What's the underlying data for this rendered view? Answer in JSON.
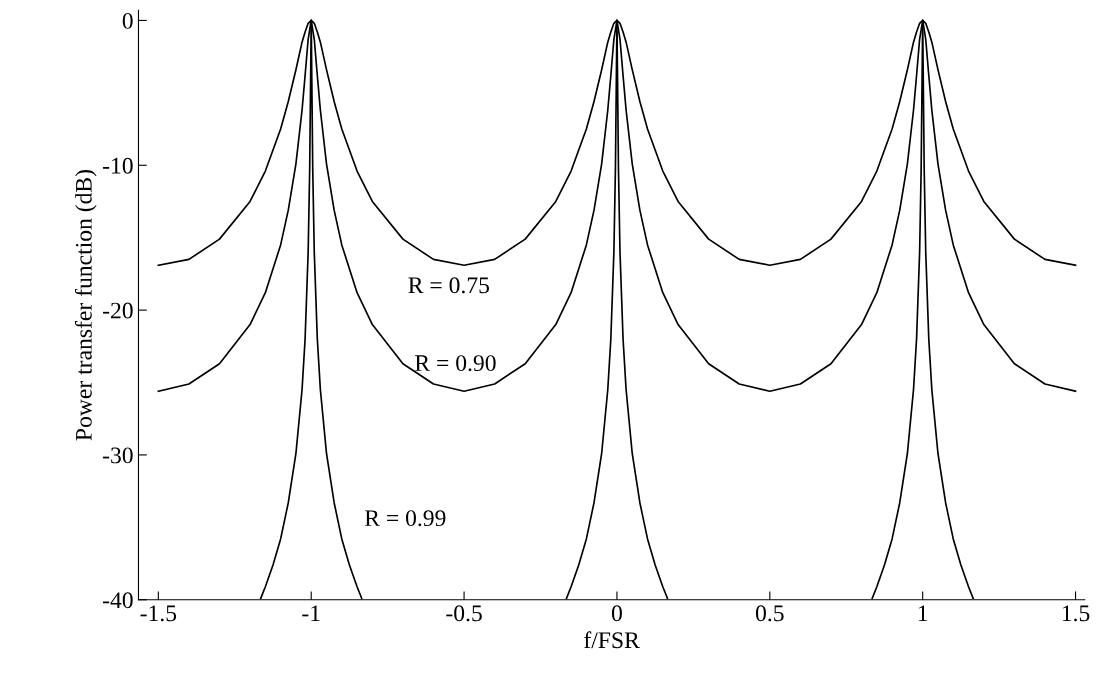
{
  "chart_data": {
    "type": "line",
    "xlabel": "f/FSR",
    "ylabel": "Power transfer function (dB)",
    "xlim": [
      -1.565,
      1.53
    ],
    "ylim": [
      -40,
      0.7
    ],
    "xticks": [
      -1.5,
      -1,
      -0.5,
      0,
      0.5,
      1,
      1.5
    ],
    "yticks": [
      -40,
      -30,
      -20,
      -10,
      0
    ],
    "grid": false,
    "marker": "none",
    "line_style": "solid",
    "x": [
      -1.5,
      -1.4,
      -1.3,
      -1.2,
      -1.15,
      -1.1,
      -1.075,
      -1.05,
      -1.03,
      -1.02,
      -1.01,
      -1,
      -0.99,
      -0.98,
      -0.97,
      -0.95,
      -0.925,
      -0.9,
      -0.85,
      -0.8,
      -0.7,
      -0.6,
      -0.5,
      -0.4,
      -0.3,
      -0.2,
      -0.15,
      -0.1,
      -0.075,
      -0.05,
      -0.03,
      -0.02,
      -0.01,
      0,
      0.01,
      0.02,
      0.03,
      0.05,
      0.075,
      0.1,
      0.15,
      0.2,
      0.3,
      0.4,
      0.5,
      0.6,
      0.7,
      0.8,
      0.85,
      0.9,
      0.925,
      0.95,
      0.97,
      0.98,
      0.99,
      1,
      1.01,
      1.02,
      1.03,
      1.05,
      1.075,
      1.1,
      1.15,
      1.2,
      1.3,
      1.4,
      1.5
    ],
    "series": [
      {
        "name": "R = 0.75",
        "color": "#000000",
        "values": [
          -16.9,
          -16.5,
          -15.1,
          -12.5,
          -10.4,
          -7.5,
          -5.6,
          -3.4,
          -1.5,
          -0.8,
          -0.2,
          0,
          -0.2,
          -0.8,
          -1.5,
          -3.4,
          -5.6,
          -7.5,
          -10.4,
          -12.5,
          -15.1,
          -16.5,
          -16.9,
          -16.5,
          -15.1,
          -12.5,
          -10.4,
          -7.5,
          -5.6,
          -3.4,
          -1.5,
          -0.8,
          -0.2,
          0,
          -0.2,
          -0.8,
          -1.5,
          -3.4,
          -5.6,
          -7.5,
          -10.4,
          -12.5,
          -15.1,
          -16.5,
          -16.9,
          -16.5,
          -15.1,
          -12.5,
          -10.4,
          -7.5,
          -5.6,
          -3.4,
          -1.5,
          -0.8,
          -0.2,
          0,
          -0.2,
          -0.8,
          -1.5,
          -3.4,
          -5.6,
          -7.5,
          -10.4,
          -12.5,
          -15.1,
          -16.5,
          -16.9
        ]
      },
      {
        "name": "R = 0.90",
        "color": "#000000",
        "values": [
          -25.6,
          -25.1,
          -23.7,
          -21.0,
          -18.8,
          -15.5,
          -13.1,
          -9.9,
          -6.2,
          -3.8,
          -1.3,
          0,
          -1.3,
          -3.8,
          -6.2,
          -9.9,
          -13.1,
          -15.5,
          -18.8,
          -21.0,
          -23.7,
          -25.1,
          -25.6,
          -25.1,
          -23.7,
          -21.0,
          -18.8,
          -15.5,
          -13.1,
          -9.9,
          -6.2,
          -3.8,
          -1.3,
          0,
          -1.3,
          -3.8,
          -6.2,
          -9.9,
          -13.1,
          -15.5,
          -18.8,
          -21.0,
          -23.7,
          -25.1,
          -25.6,
          -25.1,
          -23.7,
          -21.0,
          -18.8,
          -15.5,
          -13.1,
          -9.9,
          -6.2,
          -3.8,
          -1.3,
          0,
          -1.3,
          -3.8,
          -6.2,
          -9.9,
          -13.1,
          -15.5,
          -18.8,
          -21.0,
          -23.7,
          -25.1,
          -25.6
        ]
      },
      {
        "name": "R = 0.99",
        "color": "#000000",
        "x": [
          -1.165,
          -1.15,
          -1.125,
          -1.1,
          -1.075,
          -1.05,
          -1.03,
          -1.02,
          -1.01,
          -1.005,
          -1.002,
          -1,
          -0.998,
          -0.995,
          -0.99,
          -0.98,
          -0.97,
          -0.95,
          -0.925,
          -0.9,
          -0.875,
          -0.85,
          -0.835,
          -0.5,
          -0.165,
          -0.15,
          -0.125,
          -0.1,
          -0.075,
          -0.05,
          -0.03,
          -0.02,
          -0.01,
          -0.005,
          -0.002,
          0,
          0.002,
          0.005,
          0.01,
          0.02,
          0.03,
          0.05,
          0.075,
          0.1,
          0.125,
          0.15,
          0.165,
          0.5,
          0.835,
          0.85,
          0.875,
          0.9,
          0.925,
          0.95,
          0.97,
          0.98,
          0.99,
          0.995,
          0.998,
          1,
          1.002,
          1.005,
          1.01,
          1.02,
          1.03,
          1.05,
          1.075,
          1.1,
          1.125,
          1.15,
          1.165
        ],
        "values": [
          -39.9,
          -39.1,
          -37.6,
          -35.8,
          -33.3,
          -29.9,
          -25.5,
          -22.0,
          -16.0,
          -10.3,
          -4.1,
          0,
          -4.1,
          -10.3,
          -16.0,
          -22.0,
          -25.5,
          -29.9,
          -33.3,
          -35.8,
          -37.6,
          -39.1,
          -39.9,
          null,
          -39.9,
          -39.1,
          -37.6,
          -35.8,
          -33.3,
          -29.9,
          -25.5,
          -22.0,
          -16.0,
          -10.3,
          -4.1,
          0,
          -4.1,
          -10.3,
          -16.0,
          -22.0,
          -25.5,
          -29.9,
          -33.3,
          -35.8,
          -37.6,
          -39.1,
          -39.9,
          null,
          -39.9,
          -39.1,
          -37.6,
          -35.8,
          -33.3,
          -29.9,
          -25.5,
          -22.0,
          -16.0,
          -10.3,
          -4.1,
          0,
          -4.1,
          -10.3,
          -16.0,
          -22.0,
          -25.5,
          -29.9,
          -33.3,
          -35.8,
          -37.6,
          -39.1,
          -39.9
        ]
      }
    ]
  }
}
